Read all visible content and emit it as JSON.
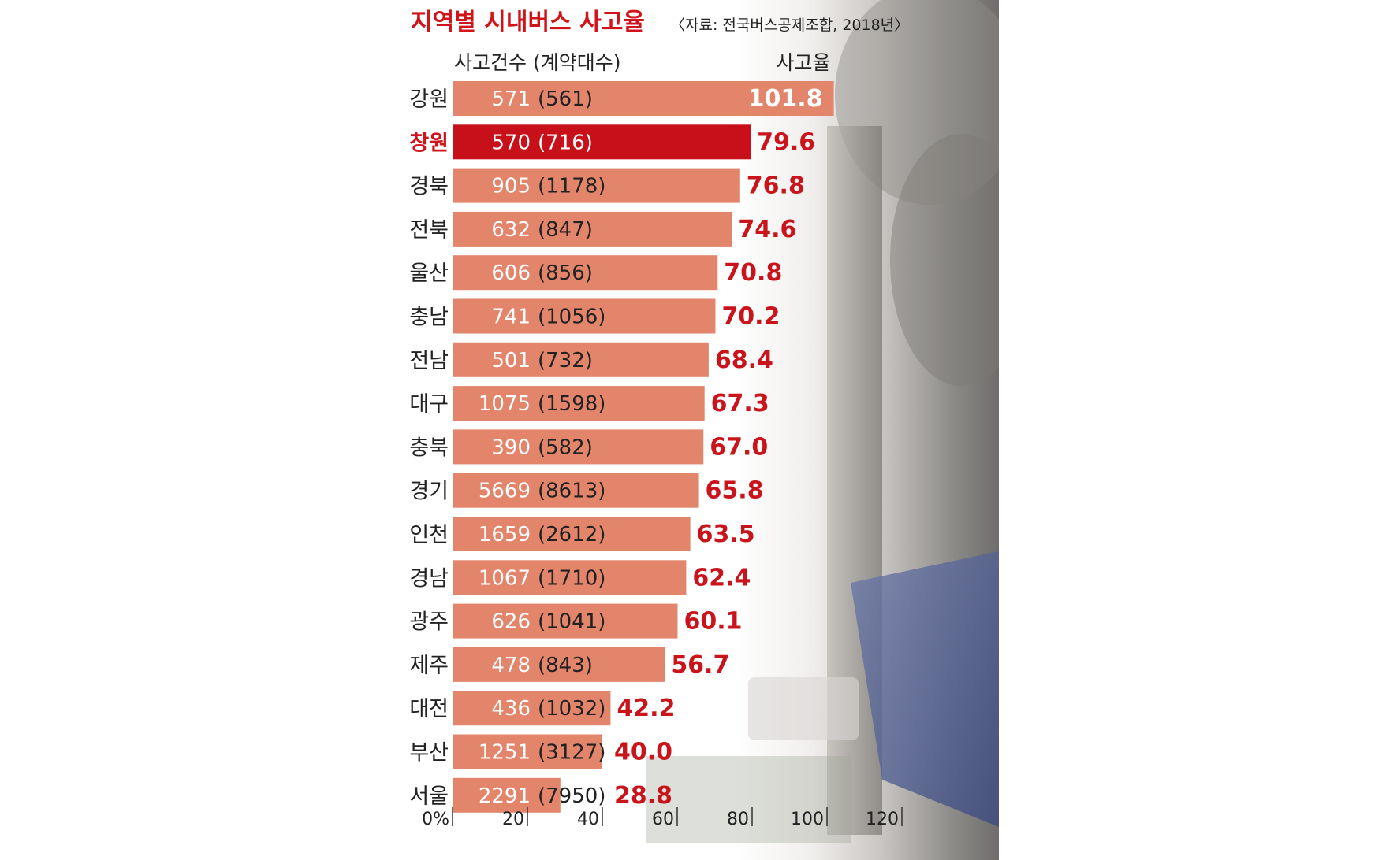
{
  "chart_data": {
    "type": "bar",
    "orientation": "horizontal",
    "title": "지역별 시내버스 사고율",
    "source": "〈자료: 전국버스공제조합, 2018년〉",
    "count_header": "사고건수 (계약대수)",
    "rate_header": "사고율",
    "highlight": "창원",
    "xlim": [
      0,
      120
    ],
    "x_ticks": [
      "0%",
      "20",
      "40",
      "60",
      "80",
      "100",
      "120"
    ],
    "categories": [
      "강원",
      "창원",
      "경북",
      "전북",
      "울산",
      "충남",
      "전남",
      "대구",
      "충북",
      "경기",
      "인천",
      "경남",
      "광주",
      "제주",
      "대전",
      "부산",
      "서울"
    ],
    "values": [
      101.8,
      79.6,
      76.8,
      74.6,
      70.8,
      70.2,
      68.4,
      67.3,
      67.0,
      65.8,
      63.5,
      62.4,
      60.1,
      56.7,
      42.2,
      40.0,
      28.8
    ],
    "value_labels": [
      "101.8",
      "79.6",
      "76.8",
      "74.6",
      "70.8",
      "70.2",
      "68.4",
      "67.3",
      "67.0",
      "65.8",
      "63.5",
      "62.4",
      "60.1",
      "56.7",
      "42.2",
      "40.0",
      "28.8"
    ],
    "accident_counts": [
      "571",
      "570",
      "905",
      "632",
      "606",
      "741",
      "501",
      "1075",
      "390",
      "5669",
      "1659",
      "1067",
      "626",
      "478",
      "436",
      "1251",
      "2291"
    ],
    "contract_counts": [
      "(561)",
      "(716)",
      "(1178)",
      "(847)",
      "(856)",
      "(1056)",
      "(732)",
      "(1598)",
      "(582)",
      "(8613)",
      "(2612)",
      "(1710)",
      "(1041)",
      "(843)",
      "(1032)",
      "(3127)",
      "(7950)"
    ],
    "colors": {
      "bar": "#e2856b",
      "highlight_bar": "#c8101b",
      "title": "#d1141b",
      "rate_label": "#c8141a"
    }
  }
}
